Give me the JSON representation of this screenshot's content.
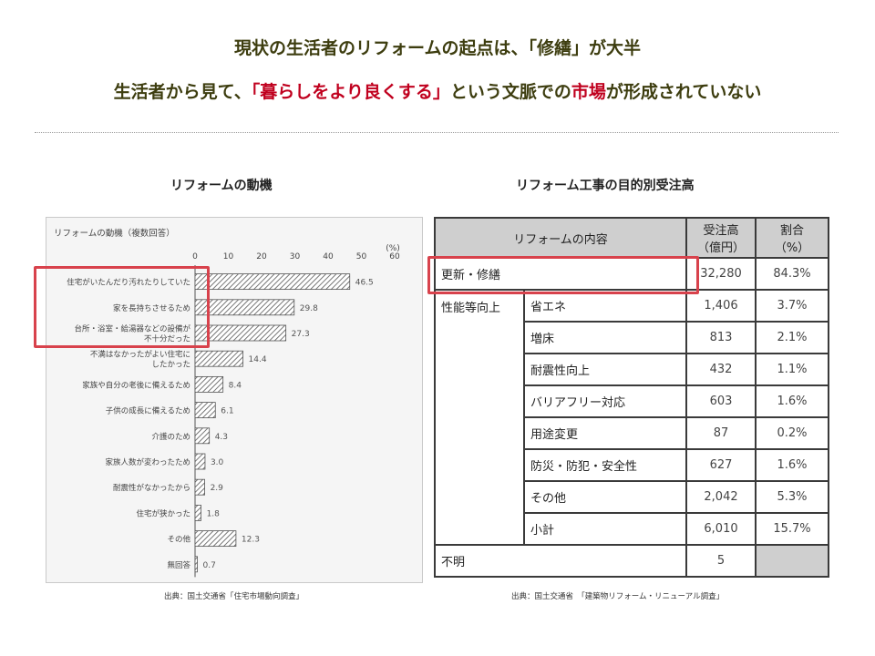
{
  "header": {
    "title_line1": "現状の生活者のリフォームの起点は、「修繕」が大半",
    "title_line2_pre": "生活者から見て、",
    "title_line2_red": "「暮らしをより良くする」",
    "title_line2_mid": "という文脈での",
    "title_line2_red2": "市場",
    "title_line2_post": "が形成されていない"
  },
  "left": {
    "section_title": "リフォームの動機",
    "source": "出典：国土交通省「住宅市場動向調査」"
  },
  "right": {
    "section_title": "リフォーム工事の目的別受注高",
    "source": "出典：国土交通省　「建築物リフォーム・リニューアル調査」"
  },
  "chart_data": {
    "type": "bar",
    "orientation": "horizontal",
    "title": "リフォームの動機（複数回答）",
    "unit": "(%)",
    "xlim": [
      0,
      60
    ],
    "ticks": [
      "0",
      "10",
      "20",
      "30",
      "40",
      "50",
      "60"
    ],
    "categories": [
      [
        "住宅がいたんだり汚れたりしていた"
      ],
      [
        "家を長持ちさせるため"
      ],
      [
        "台所・浴室・給湯器などの設備が",
        "不十分だった"
      ],
      [
        "不満はなかったがよい住宅に",
        "したかった"
      ],
      [
        "家族や自分の老後に備えるため"
      ],
      [
        "子供の成長に備えるため"
      ],
      [
        "介護のため"
      ],
      [
        "家族人数が変わったため"
      ],
      [
        "耐震性がなかったから"
      ],
      [
        "住宅が狭かった"
      ],
      [
        "その他"
      ],
      [
        "無回答"
      ]
    ],
    "values": [
      46.5,
      29.8,
      27.3,
      14.4,
      8.4,
      6.1,
      4.3,
      3.0,
      2.9,
      1.8,
      12.3,
      0.7
    ],
    "value_labels": [
      "46.5",
      "29.8",
      "27.3",
      "14.4",
      "8.4",
      "6.1",
      "4.3",
      "3.0",
      "2.9",
      "1.8",
      "12.3",
      "0.7"
    ]
  },
  "table": {
    "headers": {
      "content": "リフォームの内容",
      "amount": "受注高",
      "amount_unit": "（億円）",
      "ratio": "割合",
      "ratio_unit": "（%）"
    },
    "total_row": {
      "label": "更新・修繕",
      "amount": "32,280",
      "ratio": "84.3%"
    },
    "group_label": "性能等向上",
    "rows": [
      {
        "label": "省エネ",
        "amount": "1,406",
        "ratio": "3.7%"
      },
      {
        "label": "増床",
        "amount": "813",
        "ratio": "2.1%"
      },
      {
        "label": "耐震性向上",
        "amount": "432",
        "ratio": "1.1%"
      },
      {
        "label": "バリアフリー対応",
        "amount": "603",
        "ratio": "1.6%"
      },
      {
        "label": "用途変更",
        "amount": "87",
        "ratio": "0.2%"
      },
      {
        "label": "防災・防犯・安全性",
        "amount": "627",
        "ratio": "1.6%"
      },
      {
        "label": "その他",
        "amount": "2,042",
        "ratio": "5.3%"
      },
      {
        "label": "小計",
        "amount": "6,010",
        "ratio": "15.7%"
      }
    ],
    "unknown_row": {
      "label": "不明",
      "amount": "5"
    }
  }
}
